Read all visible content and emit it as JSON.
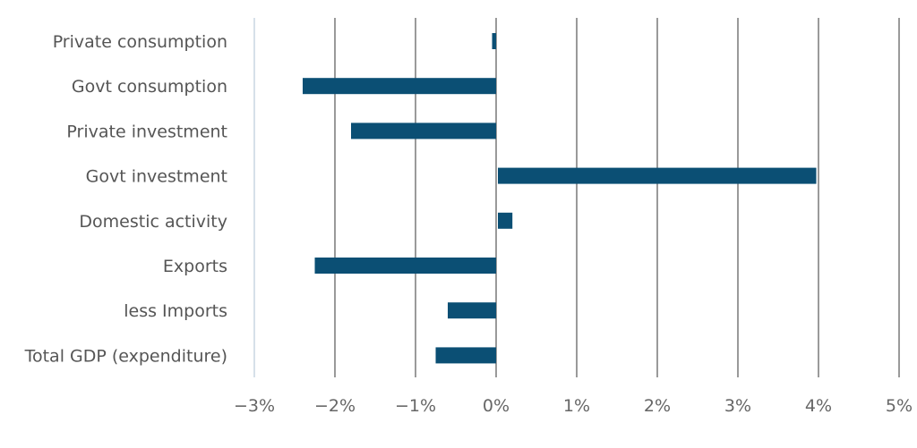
{
  "chart_data": {
    "type": "bar",
    "orientation": "horizontal",
    "title": "",
    "xlabel": "",
    "ylabel": "",
    "categories": [
      "Private consumption",
      "Govt consumption",
      "Private investment",
      "Govt investment",
      "Domestic activity",
      "Exports",
      "less Imports",
      "Total GDP (expenditure)"
    ],
    "values": [
      -0.05,
      -2.4,
      -1.8,
      3.95,
      0.18,
      -2.25,
      -0.6,
      -0.75
    ],
    "xlim": [
      -3,
      5
    ],
    "x_ticks": [
      "−3%",
      "−2%",
      "−1%",
      "0%",
      "1%",
      "2%",
      "3%",
      "4%",
      "5%"
    ],
    "grid": "vertical",
    "legend": "none",
    "colors": {
      "bar": "#0b4f74",
      "grid": "#808080",
      "axis": "#c9d6e2"
    }
  }
}
